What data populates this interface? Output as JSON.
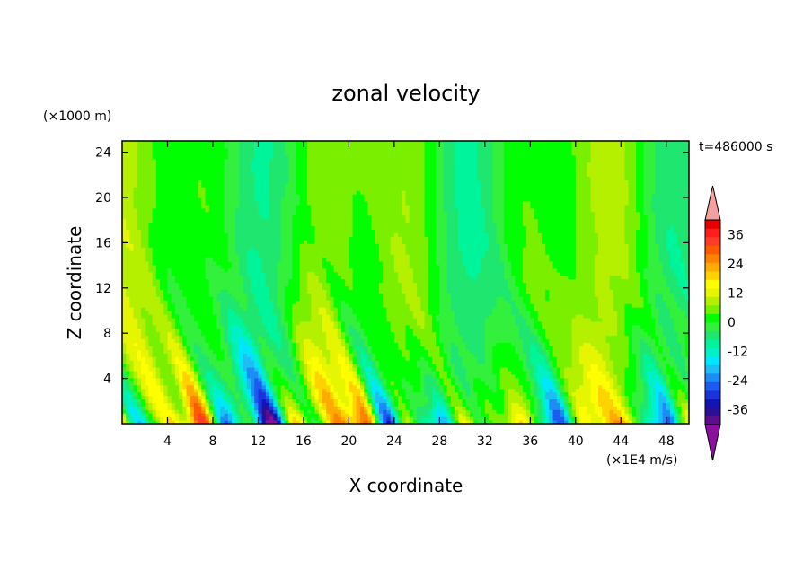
{
  "chart_data": {
    "type": "heatmap",
    "title": "zonal velocity",
    "xlabel": "X coordinate",
    "ylabel": "Z coordinate",
    "x_unit_note": "(×1E4 m/s)",
    "y_unit_note": "(×1000 m)",
    "time_label": "t=486000 s",
    "xlim": [
      0,
      50
    ],
    "ylim": [
      0,
      25
    ],
    "x_ticks": [
      4,
      8,
      12,
      16,
      20,
      24,
      28,
      32,
      36,
      40,
      44,
      48
    ],
    "y_ticks": [
      4,
      8,
      12,
      16,
      20,
      24
    ],
    "colorbar": {
      "levels": [
        -42,
        -39,
        -36,
        -33,
        -30,
        -27,
        -24,
        -21,
        -18,
        -15,
        -12,
        -9,
        -6,
        -3,
        0,
        3,
        6,
        9,
        12,
        15,
        18,
        21,
        24,
        27,
        30,
        33,
        36,
        39,
        42
      ],
      "tick_labels": [
        "36",
        "24",
        "12",
        "0",
        "-12",
        "-24",
        "-36"
      ],
      "tick_values": [
        36,
        24,
        12,
        0,
        -12,
        -24,
        -36
      ],
      "colors": [
        "#5a0f8c",
        "#2b0f96",
        "#1414b4",
        "#1e32dc",
        "#1e5af0",
        "#1e8cf5",
        "#1ebef5",
        "#00e6ff",
        "#00f0c8",
        "#00f59b",
        "#1ee66e",
        "#32f03c",
        "#00ff00",
        "#7af000",
        "#b4f000",
        "#e6f500",
        "#ffff00",
        "#ffd200",
        "#ffaa00",
        "#ff8200",
        "#ff5a00",
        "#ff3c28",
        "#ff1e1e",
        "#e60000"
      ],
      "under_color": "#8c0fa0",
      "over_color": "#f5a0a0"
    },
    "field_description": "zonal velocity mostly between -12 and +12; strongest variability near the bottom (Z < 10)"
  }
}
